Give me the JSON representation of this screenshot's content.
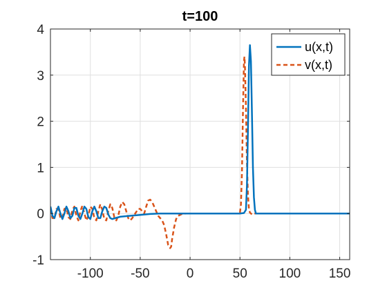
{
  "chart_data": {
    "type": "line",
    "title": "t=100",
    "xlabel": "",
    "ylabel": "",
    "xlim": [
      -140,
      160
    ],
    "ylim": [
      -1,
      4
    ],
    "xticks": [
      -100,
      -50,
      0,
      50,
      100,
      150
    ],
    "yticks": [
      -1,
      0,
      1,
      2,
      3,
      4
    ],
    "grid": true,
    "legend_position": "top-right",
    "series": [
      {
        "name": "u(x,t)",
        "color": "#0072BD",
        "style": "solid",
        "points": [
          [
            -140,
            0.15
          ],
          [
            -138,
            -0.05
          ],
          [
            -136,
            -0.1
          ],
          [
            -134,
            0.05
          ],
          [
            -132,
            0.15
          ],
          [
            -130,
            0.0
          ],
          [
            -128,
            -0.12
          ],
          [
            -126,
            0.0
          ],
          [
            -124,
            0.15
          ],
          [
            -122,
            0.05
          ],
          [
            -120,
            -0.1
          ],
          [
            -118,
            -0.05
          ],
          [
            -116,
            0.12
          ],
          [
            -114,
            0.12
          ],
          [
            -112,
            -0.05
          ],
          [
            -110,
            -0.12
          ],
          [
            -108,
            0.0
          ],
          [
            -106,
            0.15
          ],
          [
            -104,
            0.1
          ],
          [
            -102,
            -0.08
          ],
          [
            -100,
            -0.12
          ],
          [
            -98,
            0.05
          ],
          [
            -96,
            0.15
          ],
          [
            -94,
            0.05
          ],
          [
            -92,
            -0.1
          ],
          [
            -90,
            -0.1
          ],
          [
            -88,
            0.05
          ],
          [
            -86,
            0.15
          ],
          [
            -84,
            0.12
          ],
          [
            -82,
            -0.02
          ],
          [
            -80,
            -0.1
          ],
          [
            -78,
            -0.12
          ],
          [
            -75,
            -0.1
          ],
          [
            -70,
            -0.07
          ],
          [
            -60,
            -0.05
          ],
          [
            -50,
            -0.03
          ],
          [
            -40,
            -0.01
          ],
          [
            -30,
            0.0
          ],
          [
            0,
            0.0
          ],
          [
            50,
            0.0
          ],
          [
            54,
            0.01
          ],
          [
            56,
            0.08
          ],
          [
            57,
            0.6
          ],
          [
            58,
            1.8
          ],
          [
            59,
            3.2
          ],
          [
            60,
            3.65
          ],
          [
            61,
            3.3
          ],
          [
            62,
            2.2
          ],
          [
            63,
            1.0
          ],
          [
            64,
            0.35
          ],
          [
            65,
            0.08
          ],
          [
            66,
            0.0
          ],
          [
            80,
            0.0
          ],
          [
            160,
            0.0
          ]
        ]
      },
      {
        "name": "v(x,t)",
        "color": "#D95319",
        "style": "dashed",
        "points": [
          [
            -140,
            0.1
          ],
          [
            -138,
            -0.1
          ],
          [
            -136,
            -0.1
          ],
          [
            -134,
            0.1
          ],
          [
            -132,
            0.1
          ],
          [
            -130,
            -0.1
          ],
          [
            -128,
            -0.1
          ],
          [
            -126,
            0.1
          ],
          [
            -124,
            0.12
          ],
          [
            -122,
            -0.08
          ],
          [
            -120,
            -0.12
          ],
          [
            -118,
            0.08
          ],
          [
            -116,
            0.15
          ],
          [
            -114,
            -0.05
          ],
          [
            -112,
            -0.15
          ],
          [
            -110,
            0.05
          ],
          [
            -108,
            0.17
          ],
          [
            -106,
            0.0
          ],
          [
            -104,
            -0.15
          ],
          [
            -102,
            -0.05
          ],
          [
            -100,
            0.15
          ],
          [
            -98,
            0.1
          ],
          [
            -96,
            -0.1
          ],
          [
            -94,
            -0.15
          ],
          [
            -92,
            0.05
          ],
          [
            -90,
            0.2
          ],
          [
            -88,
            0.08
          ],
          [
            -86,
            -0.12
          ],
          [
            -84,
            -0.15
          ],
          [
            -82,
            0.05
          ],
          [
            -80,
            0.2
          ],
          [
            -78,
            0.12
          ],
          [
            -76,
            -0.08
          ],
          [
            -74,
            -0.15
          ],
          [
            -72,
            -0.05
          ],
          [
            -70,
            0.15
          ],
          [
            -68,
            0.25
          ],
          [
            -66,
            0.2
          ],
          [
            -64,
            0.05
          ],
          [
            -62,
            -0.1
          ],
          [
            -60,
            -0.15
          ],
          [
            -58,
            -0.1
          ],
          [
            -55,
            0.0
          ],
          [
            -52,
            0.1
          ],
          [
            -50,
            0.1
          ],
          [
            -48,
            0.05
          ],
          [
            -46,
            0.0
          ],
          [
            -44,
            0.15
          ],
          [
            -42,
            0.28
          ],
          [
            -40,
            0.3
          ],
          [
            -38,
            0.25
          ],
          [
            -36,
            0.15
          ],
          [
            -34,
            0.05
          ],
          [
            -32,
            -0.05
          ],
          [
            -30,
            -0.1
          ],
          [
            -28,
            -0.15
          ],
          [
            -26,
            -0.25
          ],
          [
            -24,
            -0.45
          ],
          [
            -22,
            -0.68
          ],
          [
            -20,
            -0.75
          ],
          [
            -19,
            -0.72
          ],
          [
            -18,
            -0.55
          ],
          [
            -16,
            -0.3
          ],
          [
            -14,
            -0.12
          ],
          [
            -12,
            -0.05
          ],
          [
            -8,
            -0.01
          ],
          [
            -4,
            0.0
          ],
          [
            48,
            0.0
          ],
          [
            50,
            0.02
          ],
          [
            51,
            0.2
          ],
          [
            52,
            0.9
          ],
          [
            53,
            2.2
          ],
          [
            54,
            3.3
          ],
          [
            54.5,
            3.4
          ],
          [
            55,
            3.2
          ],
          [
            56,
            2.3
          ],
          [
            57,
            1.1
          ],
          [
            58,
            0.4
          ],
          [
            59,
            0.1
          ],
          [
            60,
            0.02
          ],
          [
            62,
            -0.02
          ],
          [
            64,
            0.0
          ],
          [
            160,
            0.0
          ]
        ]
      }
    ]
  }
}
